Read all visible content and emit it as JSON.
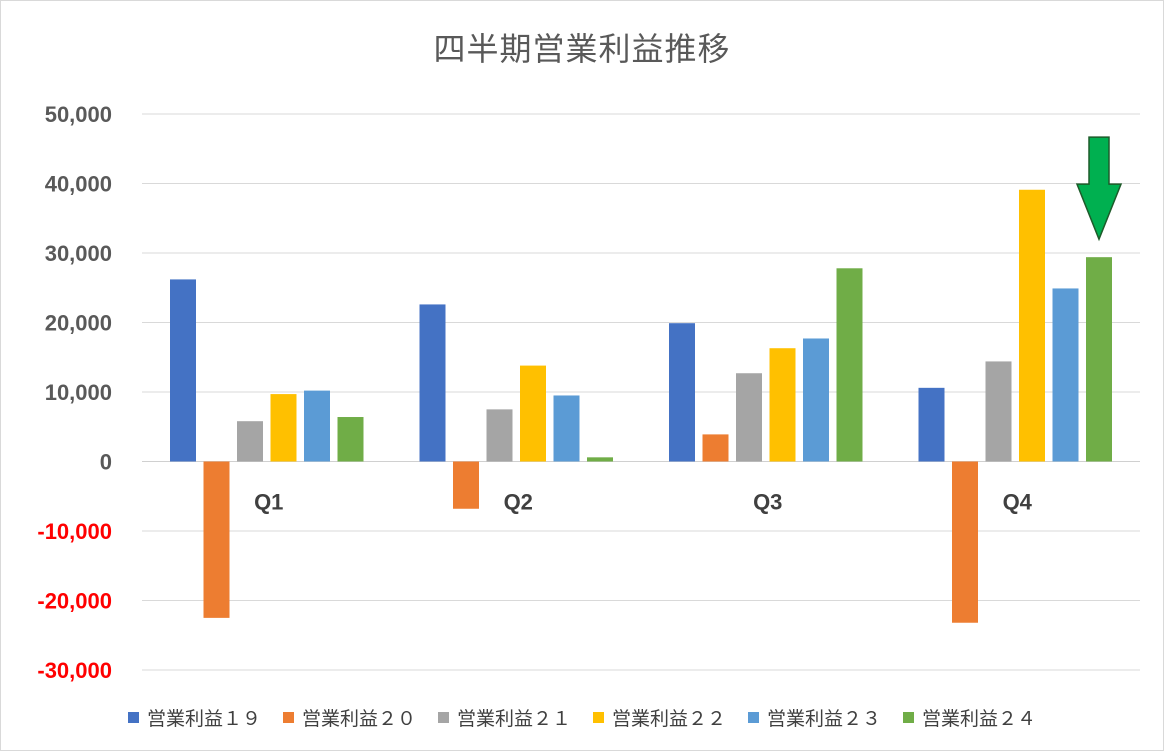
{
  "colors": {
    "grid": "#d9d9d9",
    "axis_label": "#595959",
    "negative_label": "#ff0000",
    "arrow_fill": "#00b050",
    "arrow_stroke": "#1e5b2a"
  },
  "annotation": {
    "icon": "down-arrow-icon",
    "series_index": 5,
    "category_index": 3
  },
  "chart_data": {
    "type": "bar",
    "title": "四半期営業利益推移",
    "xlabel": "",
    "ylabel": "",
    "ylim": [
      -30000,
      50000
    ],
    "ytick_step": 10000,
    "yticks": [
      "50,000",
      "40,000",
      "30,000",
      "20,000",
      "10,000",
      "0",
      "-10,000",
      "-20,000",
      "-30,000"
    ],
    "categories": [
      "Q1",
      "Q2",
      "Q3",
      "Q4"
    ],
    "grid": true,
    "legend_position": "bottom",
    "series": [
      {
        "name": "営業利益１９",
        "color": "#4472c4",
        "values": [
          26200,
          22600,
          19900,
          10600
        ]
      },
      {
        "name": "営業利益２０",
        "color": "#ed7d31",
        "values": [
          -22500,
          -6800,
          3900,
          -23200
        ]
      },
      {
        "name": "営業利益２１",
        "color": "#a5a5a5",
        "values": [
          5800,
          7500,
          12700,
          14400
        ]
      },
      {
        "name": "営業利益２２",
        "color": "#ffc000",
        "values": [
          9700,
          13800,
          16300,
          39100
        ]
      },
      {
        "name": "営業利益２３",
        "color": "#5b9bd5",
        "values": [
          10200,
          9500,
          17700,
          24900
        ]
      },
      {
        "name": "営業利益２４",
        "color": "#70ad47",
        "values": [
          6400,
          600,
          27800,
          29400
        ]
      }
    ]
  }
}
